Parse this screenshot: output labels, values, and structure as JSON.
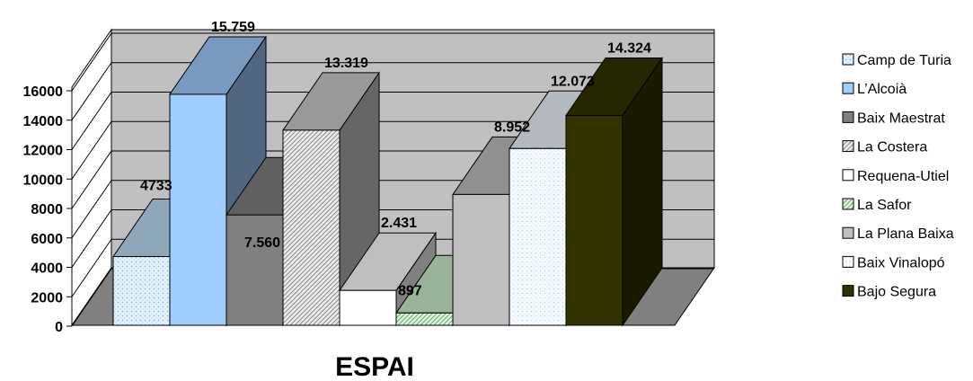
{
  "chart_data": {
    "type": "bar",
    "style": "3d-column",
    "xlabel": "ESPAI",
    "ylim": [
      0,
      16000
    ],
    "yticks": [
      "0",
      "2000",
      "4000",
      "6000",
      "8000",
      "10000",
      "12000",
      "14000",
      "16000"
    ],
    "grid": true,
    "legend_position": "right",
    "series": [
      {
        "name": "Camp de Turia",
        "value": 4733,
        "label": "4733",
        "color": "#bfe0f7",
        "pattern": "dots"
      },
      {
        "name": "L’Alcoià",
        "value": 15759,
        "label": "15.759",
        "color": "#9fcdfd",
        "pattern": "solid"
      },
      {
        "name": "Baix Maestrat",
        "value": 7560,
        "label": "7.560",
        "color": "#808080",
        "pattern": "solid"
      },
      {
        "name": "La Costera",
        "value": 13319,
        "label": "13.319",
        "color": "#cccccc",
        "pattern": "diagonal"
      },
      {
        "name": "Requena-Utiel",
        "value": 2431,
        "label": "2.431",
        "color": "#ffffff",
        "pattern": "solid"
      },
      {
        "name": "La Safor",
        "value": 897,
        "label": "897",
        "color": "#ccf0cc",
        "pattern": "diagonal-green"
      },
      {
        "name": "La Plana Baixa",
        "value": 8952,
        "label": "8.952",
        "color": "#c0c0c0",
        "pattern": "solid"
      },
      {
        "name": "Baix Vinalopó",
        "value": 12073,
        "label": "12.073",
        "color": "#eef6ff",
        "pattern": "dots"
      },
      {
        "name": "Bajo Segura",
        "value": 14324,
        "label": "14.324",
        "color": "#333300",
        "pattern": "solid"
      }
    ]
  }
}
